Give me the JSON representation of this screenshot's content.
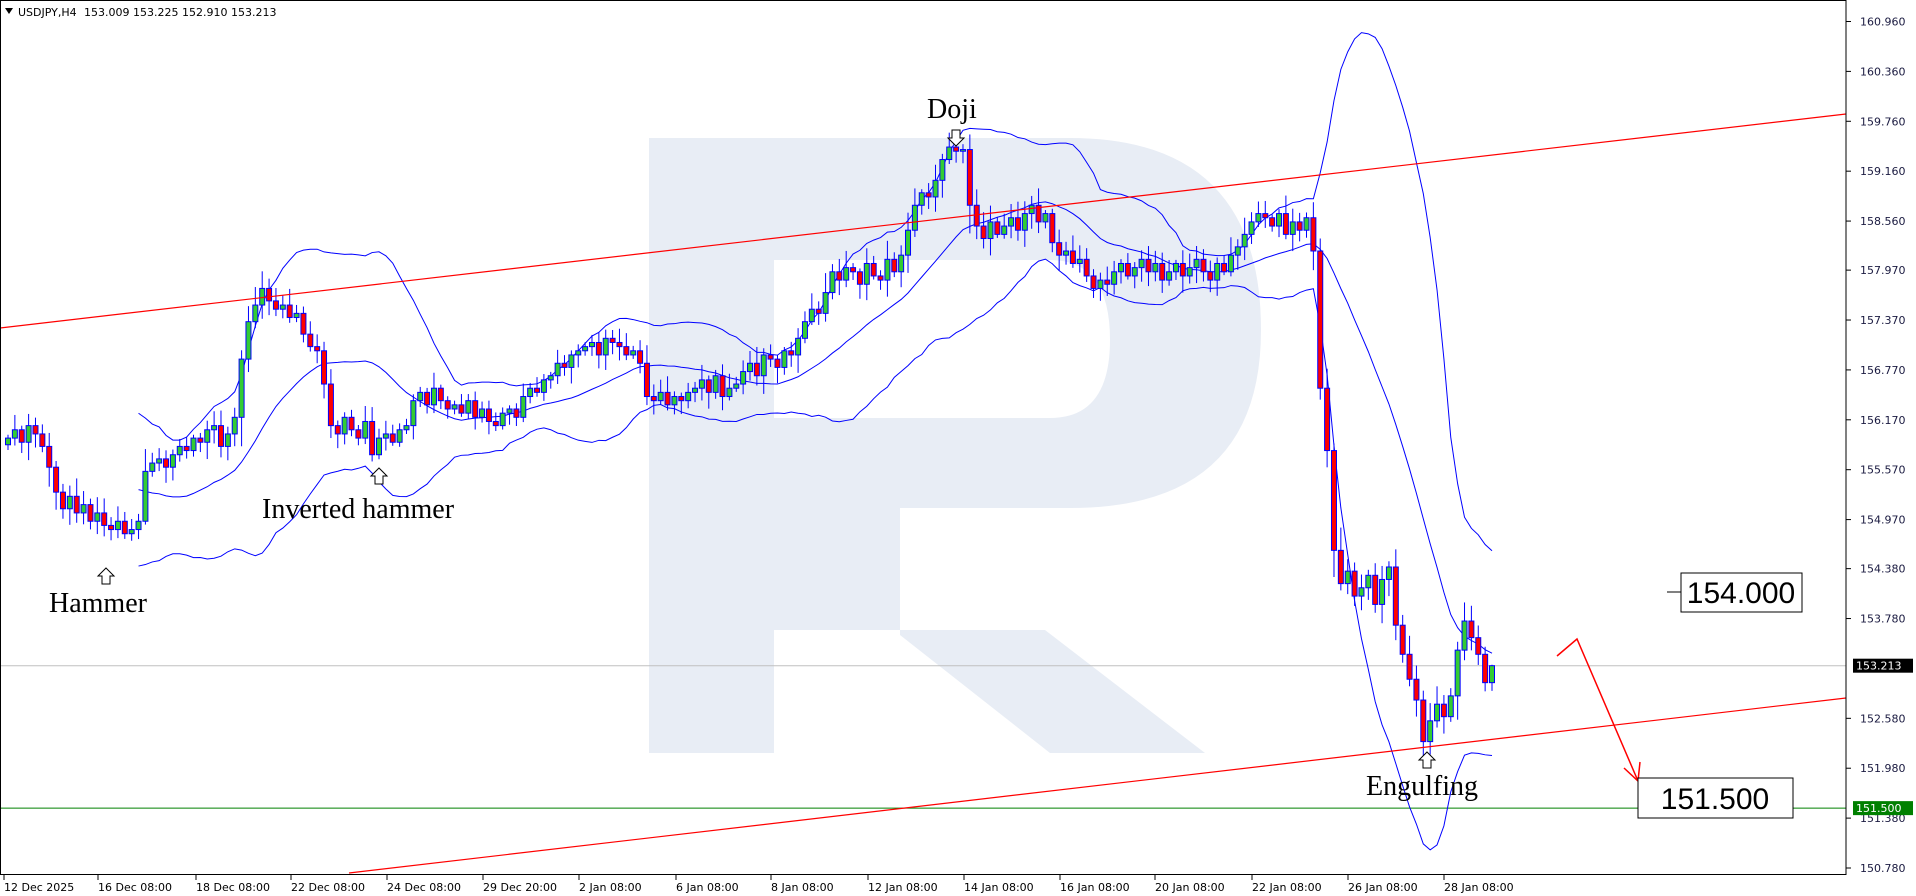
{
  "header": {
    "symbol": "USDJPY,H4",
    "ohlc": "153.009 153.225 152.910 153.213"
  },
  "colors": {
    "bull": "#33cc33",
    "bear": "#ff0000",
    "outline": "#0000ff",
    "bands": "#0000ff",
    "trend": "#ff0000",
    "support": "#008000",
    "watermark": "#e8edf5"
  },
  "chart_data": {
    "type": "candlestick",
    "indicator": "Bollinger Bands",
    "ylim": [
      150.78,
      160.96
    ],
    "y_ticks": [
      "160.960",
      "160.360",
      "159.760",
      "159.160",
      "158.560",
      "157.970",
      "157.370",
      "156.770",
      "156.170",
      "155.570",
      "154.970",
      "154.380",
      "153.780",
      "152.580",
      "151.980",
      "151.380",
      "150.780"
    ],
    "x_ticks": [
      "12 Dec 2025",
      "16 Dec 08:00",
      "18 Dec 08:00",
      "22 Dec 08:00",
      "24 Dec 08:00",
      "29 Dec 20:00",
      "2 Jan 08:00",
      "6 Jan 08:00",
      "8 Jan 08:00",
      "12 Jan 08:00",
      "14 Jan 08:00",
      "16 Jan 08:00",
      "20 Jan 08:00",
      "22 Jan 08:00",
      "26 Jan 08:00",
      "28 Jan 08:00"
    ],
    "current_price": "153.213",
    "last_candle": {
      "open": 153.009,
      "high": 153.225,
      "low": 152.91,
      "close": 153.213
    },
    "closes": [
      155.95,
      156.05,
      155.9,
      156.1,
      156.0,
      155.85,
      155.6,
      155.3,
      155.1,
      155.25,
      155.05,
      155.15,
      154.95,
      155.05,
      154.9,
      154.85,
      154.95,
      154.8,
      154.85,
      154.95,
      155.55,
      155.65,
      155.7,
      155.6,
      155.75,
      155.85,
      155.8,
      155.95,
      155.9,
      156.05,
      156.1,
      155.85,
      156.0,
      156.2,
      156.9,
      157.35,
      157.55,
      157.75,
      157.6,
      157.5,
      157.55,
      157.4,
      157.45,
      157.2,
      157.05,
      157.0,
      156.6,
      156.1,
      156.0,
      156.2,
      156.05,
      155.95,
      156.15,
      155.75,
      155.95,
      156.0,
      155.9,
      156.05,
      156.1,
      156.4,
      156.5,
      156.35,
      156.55,
      156.4,
      156.3,
      156.35,
      156.25,
      156.4,
      156.2,
      156.3,
      156.15,
      156.1,
      156.25,
      156.3,
      156.2,
      156.45,
      156.55,
      156.5,
      156.65,
      156.7,
      156.85,
      156.8,
      156.95,
      157.0,
      157.05,
      157.1,
      156.95,
      157.15,
      157.1,
      157.05,
      156.95,
      157.0,
      156.85,
      156.45,
      156.4,
      156.5,
      156.35,
      156.45,
      156.4,
      156.5,
      156.55,
      156.65,
      156.5,
      156.7,
      156.45,
      156.55,
      156.6,
      156.75,
      156.85,
      156.7,
      156.95,
      156.9,
      156.8,
      157.0,
      156.95,
      157.15,
      157.35,
      157.5,
      157.45,
      157.7,
      157.95,
      157.85,
      158.0,
      157.95,
      157.8,
      158.05,
      157.9,
      157.85,
      158.1,
      157.95,
      158.15,
      158.45,
      158.75,
      158.9,
      158.85,
      159.05,
      159.3,
      159.45,
      159.4,
      159.42,
      158.75,
      158.5,
      158.35,
      158.55,
      158.4,
      158.5,
      158.6,
      158.45,
      158.65,
      158.75,
      158.55,
      158.65,
      158.3,
      158.15,
      158.2,
      158.05,
      158.1,
      157.9,
      157.75,
      157.85,
      157.8,
      157.95,
      158.05,
      157.9,
      158.0,
      158.1,
      157.95,
      158.05,
      157.85,
      157.95,
      158.05,
      157.9,
      158.0,
      158.1,
      157.95,
      157.85,
      158.05,
      157.95,
      158.15,
      158.25,
      158.4,
      158.55,
      158.65,
      158.6,
      158.5,
      158.65,
      158.4,
      158.55,
      158.45,
      158.6,
      158.2,
      156.55,
      155.8,
      154.6,
      154.2,
      154.35,
      154.05,
      154.15,
      154.3,
      153.95,
      154.25,
      154.4,
      153.7,
      153.35,
      153.05,
      152.8,
      152.3,
      152.55,
      152.75,
      152.6,
      152.85,
      153.4,
      153.75,
      153.55,
      153.35,
      153.009,
      153.213
    ],
    "trendlines": [
      {
        "name": "upper-channel",
        "from": {
          "date": "12 Dec 2025",
          "price": 157.2
        },
        "to_price_at_axis": 159.82
      },
      {
        "name": "lower-channel",
        "to_price_at_axis": 152.66
      }
    ],
    "levels": [
      {
        "price": "154.000",
        "kind": "target-label"
      },
      {
        "price": "151.500",
        "kind": "support",
        "axis_label": "151.500"
      }
    ],
    "annotations": [
      "Doji",
      "Inverted hammer",
      "Hammer",
      "Engulfing"
    ]
  }
}
